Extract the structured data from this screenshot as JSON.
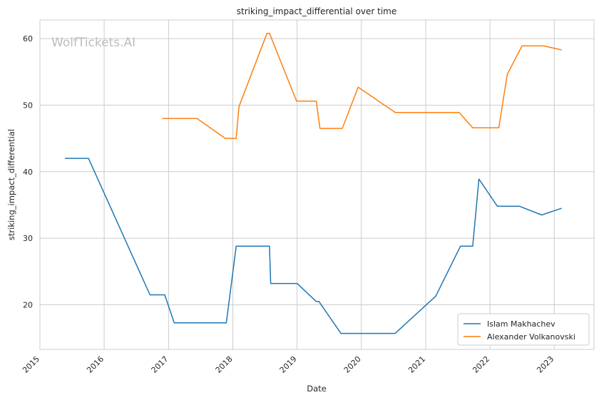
{
  "watermark": "WolfTickets.AI",
  "chart_data": {
    "type": "line",
    "title": "striking_impact_differential over time",
    "xlabel": "Date",
    "ylabel": "striking_impact_differential",
    "x_ticks": [
      "2015",
      "2016",
      "2017",
      "2018",
      "2019",
      "2020",
      "2021",
      "2022",
      "2023"
    ],
    "y_ticks": [
      20,
      30,
      40,
      50,
      60
    ],
    "xlim": [
      "2015-01-01",
      "2023-08-15"
    ],
    "ylim": [
      13.3,
      62.8
    ],
    "grid": true,
    "legend_position": "bottom-right",
    "series": [
      {
        "name": "Islam Makhachev",
        "color": "#1f77b4",
        "points": [
          [
            "2015-05-23",
            42.0
          ],
          [
            "2015-10-04",
            42.0
          ],
          [
            "2016-09-17",
            21.5
          ],
          [
            "2016-12-10",
            21.5
          ],
          [
            "2017-02-02",
            17.3
          ],
          [
            "2017-11-25",
            17.3
          ],
          [
            "2018-01-20",
            28.8
          ],
          [
            "2018-07-28",
            28.8
          ],
          [
            "2018-08-04",
            23.2
          ],
          [
            "2019-01-01",
            23.2
          ],
          [
            "2019-04-20",
            20.5
          ],
          [
            "2019-05-05",
            20.5
          ],
          [
            "2019-09-07",
            15.7
          ],
          [
            "2020-07-11",
            15.7
          ],
          [
            "2021-02-27",
            21.3
          ],
          [
            "2021-07-17",
            28.8
          ],
          [
            "2021-09-25",
            28.8
          ],
          [
            "2021-10-30",
            38.9
          ],
          [
            "2022-02-12",
            34.8
          ],
          [
            "2022-06-18",
            34.8
          ],
          [
            "2022-10-22",
            33.5
          ],
          [
            "2023-02-12",
            34.5
          ]
        ]
      },
      {
        "name": "Alexander Volkanovski",
        "color": "#ff7f0e",
        "points": [
          [
            "2016-11-26",
            48.0
          ],
          [
            "2017-06-11",
            48.0
          ],
          [
            "2017-11-19",
            45.0
          ],
          [
            "2018-01-20",
            45.0
          ],
          [
            "2018-02-05",
            49.8
          ],
          [
            "2018-07-14",
            60.8
          ],
          [
            "2018-07-28",
            60.8
          ],
          [
            "2018-12-29",
            50.6
          ],
          [
            "2019-04-20",
            50.6
          ],
          [
            "2019-05-11",
            46.5
          ],
          [
            "2019-09-15",
            46.5
          ],
          [
            "2019-12-14",
            52.7
          ],
          [
            "2020-07-12",
            48.9
          ],
          [
            "2021-07-10",
            48.9
          ],
          [
            "2021-09-25",
            46.6
          ],
          [
            "2022-02-20",
            46.6
          ],
          [
            "2022-04-09",
            54.6
          ],
          [
            "2022-07-02",
            58.9
          ],
          [
            "2022-11-02",
            58.9
          ],
          [
            "2023-02-12",
            58.3
          ]
        ]
      }
    ]
  }
}
